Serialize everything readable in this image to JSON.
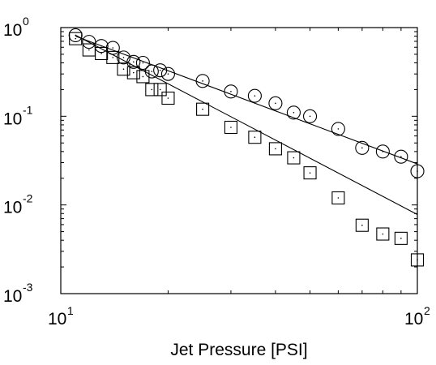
{
  "chart_data": {
    "type": "scatter",
    "title": "",
    "xlabel": "Jet Pressure [PSI]",
    "ylabel": "",
    "x_scale": "log",
    "y_scale": "log",
    "xlim": [
      10,
      100
    ],
    "ylim": [
      0.001,
      1
    ],
    "grid": false,
    "x_ticks": [
      {
        "value": 10,
        "base": "10",
        "exp": "1"
      },
      {
        "value": 100,
        "base": "10",
        "exp": "2"
      }
    ],
    "y_ticks": [
      {
        "value": 1,
        "base": "10",
        "exp": "0"
      },
      {
        "value": 0.1,
        "base": "10",
        "exp": "-1"
      },
      {
        "value": 0.01,
        "base": "10",
        "exp": "-2"
      },
      {
        "value": 0.001,
        "base": "10",
        "exp": "-3"
      }
    ],
    "series": [
      {
        "marker": "circle",
        "color": "#000000",
        "x": [
          11,
          12,
          13,
          14,
          15,
          16,
          17,
          18,
          19,
          20,
          25,
          30,
          35,
          40,
          45,
          50,
          60,
          70,
          80,
          90,
          100
        ],
        "y": [
          0.82,
          0.69,
          0.62,
          0.59,
          0.46,
          0.41,
          0.4,
          0.32,
          0.33,
          0.3,
          0.25,
          0.19,
          0.17,
          0.14,
          0.11,
          0.1,
          0.072,
          0.044,
          0.04,
          0.035,
          0.024
        ]
      },
      {
        "marker": "square",
        "color": "#000000",
        "x": [
          11,
          12,
          13,
          14,
          15,
          16,
          17,
          18,
          19,
          20,
          25,
          30,
          35,
          40,
          45,
          50,
          60,
          70,
          80,
          90,
          100
        ],
        "y": [
          0.75,
          0.56,
          0.51,
          0.46,
          0.34,
          0.31,
          0.28,
          0.2,
          0.2,
          0.16,
          0.12,
          0.075,
          0.058,
          0.043,
          0.034,
          0.023,
          0.012,
          0.0059,
          0.0047,
          0.0042,
          0.0024
        ]
      }
    ],
    "fit_lines": [
      {
        "x": [
          11,
          100
        ],
        "y": [
          0.8,
          0.029
        ]
      },
      {
        "x": [
          11,
          100
        ],
        "y": [
          0.82,
          0.0078
        ]
      }
    ]
  }
}
